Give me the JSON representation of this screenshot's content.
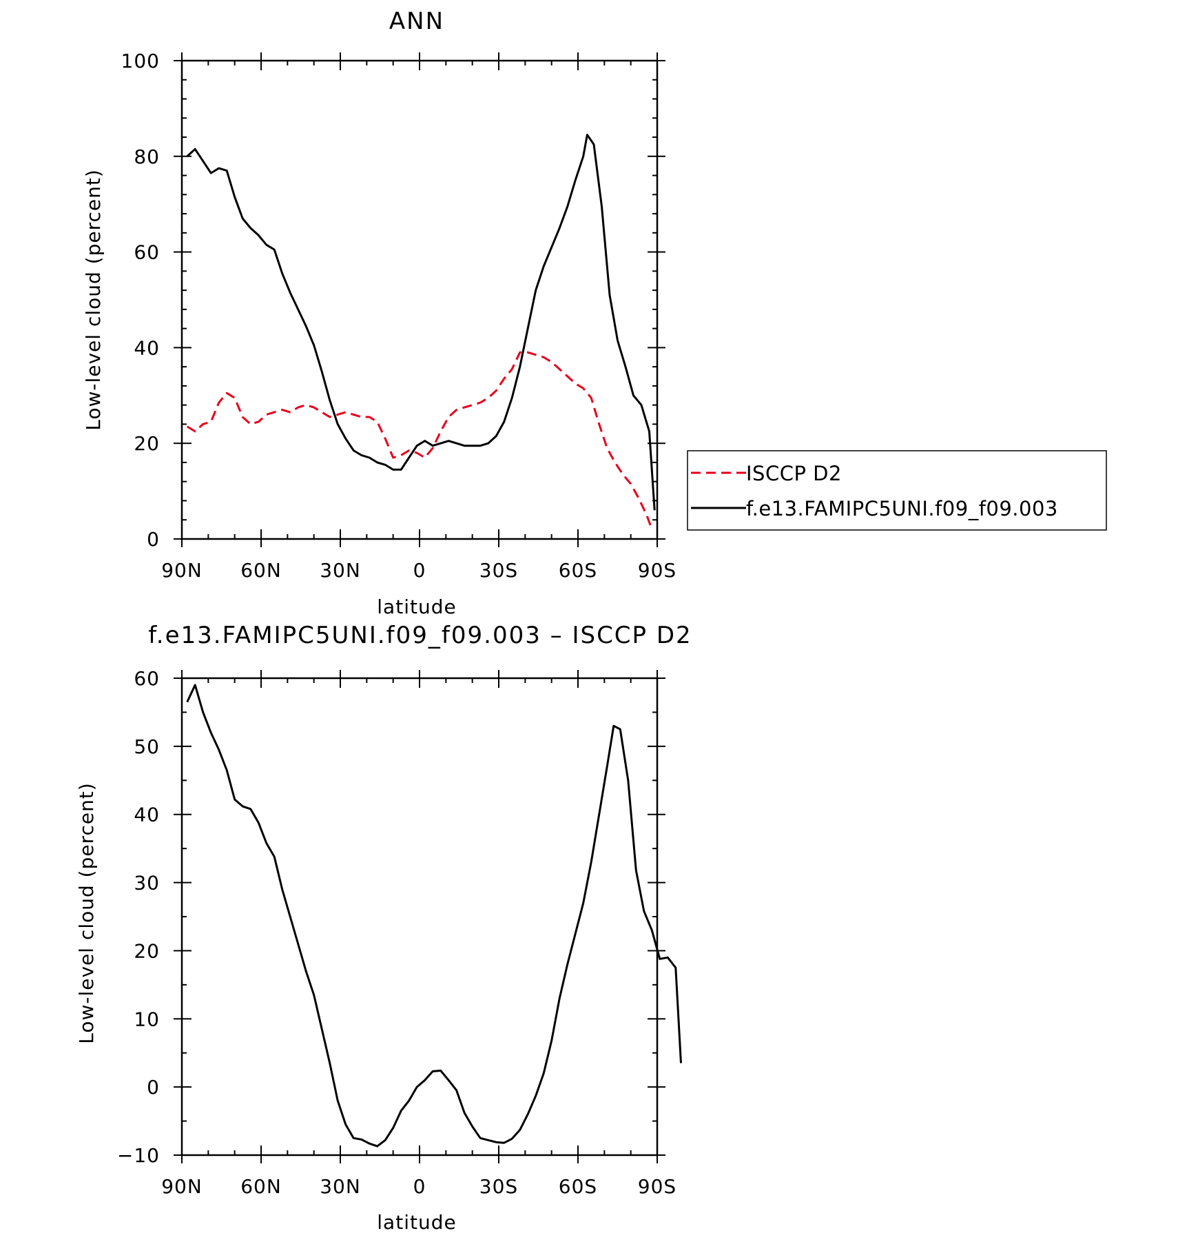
{
  "colors": {
    "model": "#000000",
    "obs": "#e8001a",
    "axes": "#000000",
    "background": "#ffffff"
  },
  "chart_data": [
    {
      "id": "top",
      "type": "line",
      "title": "ANN",
      "xlabel": "latitude",
      "ylabel": "Low-level cloud (percent)",
      "xlim": [
        90,
        -90
      ],
      "ylim": [
        0,
        100
      ],
      "x_ticks": [
        {
          "v": 90,
          "label": "90N"
        },
        {
          "v": 60,
          "label": "60N"
        },
        {
          "v": 30,
          "label": "30N"
        },
        {
          "v": 0,
          "label": "0"
        },
        {
          "v": -30,
          "label": "30S"
        },
        {
          "v": -60,
          "label": "60S"
        },
        {
          "v": -90,
          "label": "90S"
        }
      ],
      "y_ticks": [
        {
          "v": 0,
          "label": "0"
        },
        {
          "v": 20,
          "label": "20"
        },
        {
          "v": 40,
          "label": "40"
        },
        {
          "v": 60,
          "label": "60"
        },
        {
          "v": 80,
          "label": "80"
        },
        {
          "v": 100,
          "label": "100"
        }
      ],
      "grid": false,
      "legend": {
        "placement": "right",
        "entries": [
          "ISCCP D2",
          "f.e13.FAMIPC5UNI.f09_f09.003"
        ]
      },
      "series": [
        {
          "name": "ISCCP D2",
          "style": "dashed",
          "color": "#e8001a",
          "points": [
            [
              88,
              23.5
            ],
            [
              85,
              22.5
            ],
            [
              82,
              24
            ],
            [
              79,
              24.5
            ],
            [
              76,
              28.5
            ],
            [
              73,
              30.5
            ],
            [
              70,
              29.5
            ],
            [
              67,
              25.5
            ],
            [
              64,
              24
            ],
            [
              61,
              24.5
            ],
            [
              58,
              26
            ],
            [
              55,
              26.5
            ],
            [
              52,
              27
            ],
            [
              49,
              26.5
            ],
            [
              46,
              27.5
            ],
            [
              43,
              28
            ],
            [
              40,
              27.5
            ],
            [
              37,
              26.5
            ],
            [
              34,
              25.5
            ],
            [
              31,
              26
            ],
            [
              28,
              26.5
            ],
            [
              25,
              26
            ],
            [
              22,
              25.5
            ],
            [
              19,
              25.5
            ],
            [
              16,
              24.5
            ],
            [
              13,
              21
            ],
            [
              10,
              17
            ],
            [
              7,
              17.5
            ],
            [
              4,
              18.5
            ],
            [
              1,
              18
            ],
            [
              -2,
              17
            ],
            [
              -5,
              19
            ],
            [
              -8,
              22.5
            ],
            [
              -11,
              25.5
            ],
            [
              -14,
              27
            ],
            [
              -17,
              27.5
            ],
            [
              -20,
              28
            ],
            [
              -23,
              28.5
            ],
            [
              -26,
              29.5
            ],
            [
              -29,
              31
            ],
            [
              -32,
              33.5
            ],
            [
              -35,
              35.5
            ],
            [
              -38,
              39
            ],
            [
              -41,
              39
            ],
            [
              -44,
              38.5
            ],
            [
              -47,
              38
            ],
            [
              -50,
              37
            ],
            [
              -53,
              35.5
            ],
            [
              -56,
              34
            ],
            [
              -59,
              32.5
            ],
            [
              -62,
              31.5
            ],
            [
              -65,
              29.5
            ],
            [
              -68,
              24
            ],
            [
              -71,
              19
            ],
            [
              -74,
              16
            ],
            [
              -77,
              13.5
            ],
            [
              -80,
              11.5
            ],
            [
              -83,
              8.5
            ],
            [
              -86,
              5
            ],
            [
              -88,
              2
            ]
          ]
        },
        {
          "name": "f.e13.FAMIPC5UNI.f09_f09.003",
          "style": "solid",
          "color": "#000000",
          "points": [
            [
              88,
              80
            ],
            [
              85,
              81.5
            ],
            [
              82,
              79
            ],
            [
              79,
              76.5
            ],
            [
              76,
              77.5
            ],
            [
              73,
              77
            ],
            [
              70,
              71.5
            ],
            [
              67,
              67
            ],
            [
              64,
              65
            ],
            [
              61,
              63.5
            ],
            [
              58,
              61.5
            ],
            [
              55,
              60.5
            ],
            [
              52,
              55.5
            ],
            [
              49,
              51.5
            ],
            [
              46,
              48
            ],
            [
              43,
              44.5
            ],
            [
              40,
              40.5
            ],
            [
              37,
              35
            ],
            [
              34,
              29
            ],
            [
              31,
              24
            ],
            [
              28,
              21
            ],
            [
              25,
              18.5
            ],
            [
              22,
              17.5
            ],
            [
              19,
              17
            ],
            [
              16,
              16
            ],
            [
              13,
              15.5
            ],
            [
              10,
              14.5
            ],
            [
              7,
              14.5
            ],
            [
              4,
              17
            ],
            [
              1,
              19.5
            ],
            [
              -2,
              20.5
            ],
            [
              -5,
              19.5
            ],
            [
              -8,
              20
            ],
            [
              -11,
              20.5
            ],
            [
              -14,
              20
            ],
            [
              -17,
              19.5
            ],
            [
              -20,
              19.5
            ],
            [
              -23,
              19.5
            ],
            [
              -26,
              20
            ],
            [
              -29,
              21.5
            ],
            [
              -32,
              24.5
            ],
            [
              -35,
              29.5
            ],
            [
              -38,
              36
            ],
            [
              -41,
              44
            ],
            [
              -44,
              52
            ],
            [
              -47,
              57
            ],
            [
              -50,
              61
            ],
            [
              -53,
              65
            ],
            [
              -56,
              69.5
            ],
            [
              -59,
              75
            ],
            [
              -62,
              80
            ],
            [
              -63.5,
              84.5
            ],
            [
              -66,
              82.5
            ],
            [
              -69,
              69.5
            ],
            [
              -72,
              51
            ],
            [
              -75,
              41.5
            ],
            [
              -78,
              36
            ],
            [
              -81,
              30
            ],
            [
              -84,
              28
            ],
            [
              -87,
              22.5
            ],
            [
              -89,
              6
            ]
          ]
        }
      ]
    },
    {
      "id": "bottom",
      "type": "line",
      "title": "f.e13.FAMIPC5UNI.f09_f09.003 – ISCCP D2",
      "xlabel": "latitude",
      "ylabel": "Low-level cloud (percent)",
      "xlim": [
        90,
        -90
      ],
      "ylim": [
        -10,
        60
      ],
      "x_ticks": [
        {
          "v": 90,
          "label": "90N"
        },
        {
          "v": 60,
          "label": "60N"
        },
        {
          "v": 30,
          "label": "30N"
        },
        {
          "v": 0,
          "label": "0"
        },
        {
          "v": -30,
          "label": "30S"
        },
        {
          "v": -60,
          "label": "60S"
        },
        {
          "v": -90,
          "label": "90S"
        }
      ],
      "y_ticks": [
        {
          "v": -10,
          "label": "−10"
        },
        {
          "v": 0,
          "label": "0"
        },
        {
          "v": 10,
          "label": "10"
        },
        {
          "v": 20,
          "label": "20"
        },
        {
          "v": 30,
          "label": "30"
        },
        {
          "v": 40,
          "label": "40"
        },
        {
          "v": 50,
          "label": "50"
        },
        {
          "v": 60,
          "label": "60"
        }
      ],
      "grid": false,
      "series": [
        {
          "style": "solid",
          "color": "#000000",
          "points": [
            [
              88,
              56.5
            ],
            [
              85,
              59
            ],
            [
              82,
              55
            ],
            [
              79,
              52
            ],
            [
              76,
              49.5
            ],
            [
              73,
              46.5
            ],
            [
              70,
              42.2
            ],
            [
              67,
              41.2
            ],
            [
              64,
              40.8
            ],
            [
              61,
              38.8
            ],
            [
              58,
              35.8
            ],
            [
              55,
              33.8
            ],
            [
              52,
              29
            ],
            [
              49,
              25
            ],
            [
              46,
              21
            ],
            [
              43,
              17
            ],
            [
              40,
              13.5
            ],
            [
              37,
              8.5
            ],
            [
              34,
              3.5
            ],
            [
              31,
              -2
            ],
            [
              28,
              -5.5
            ],
            [
              25,
              -7.5
            ],
            [
              22,
              -7.7
            ],
            [
              19,
              -8.3
            ],
            [
              16,
              -8.7
            ],
            [
              13,
              -7.8
            ],
            [
              10,
              -6
            ],
            [
              7,
              -3.5
            ],
            [
              4,
              -2
            ],
            [
              1,
              0
            ],
            [
              -2,
              1
            ],
            [
              -5,
              2.3
            ],
            [
              -8,
              2.4
            ],
            [
              -11,
              1
            ],
            [
              -14,
              -0.5
            ],
            [
              -17,
              -3.8
            ],
            [
              -20,
              -5.8
            ],
            [
              -23,
              -7.5
            ],
            [
              -26,
              -7.8
            ],
            [
              -29,
              -8.1
            ],
            [
              -32,
              -8.2
            ],
            [
              -35,
              -7.6
            ],
            [
              -38,
              -6.3
            ],
            [
              -41,
              -4
            ],
            [
              -44,
              -1.3
            ],
            [
              -47,
              2
            ],
            [
              -50,
              6.8
            ],
            [
              -53,
              13
            ],
            [
              -56,
              18
            ],
            [
              -59,
              22.5
            ],
            [
              -62,
              27
            ],
            [
              -65,
              33
            ],
            [
              -68,
              40
            ],
            [
              -71,
              47
            ],
            [
              -73.5,
              53
            ],
            [
              -76,
              52.5
            ],
            [
              -79,
              45
            ],
            [
              -82,
              31.8
            ],
            [
              -85,
              25.8
            ],
            [
              -88,
              23
            ],
            [
              -91,
              18.8
            ],
            [
              -94,
              19
            ],
            [
              -97,
              17.5
            ],
            [
              -99,
              3.5
            ]
          ]
        }
      ]
    }
  ]
}
